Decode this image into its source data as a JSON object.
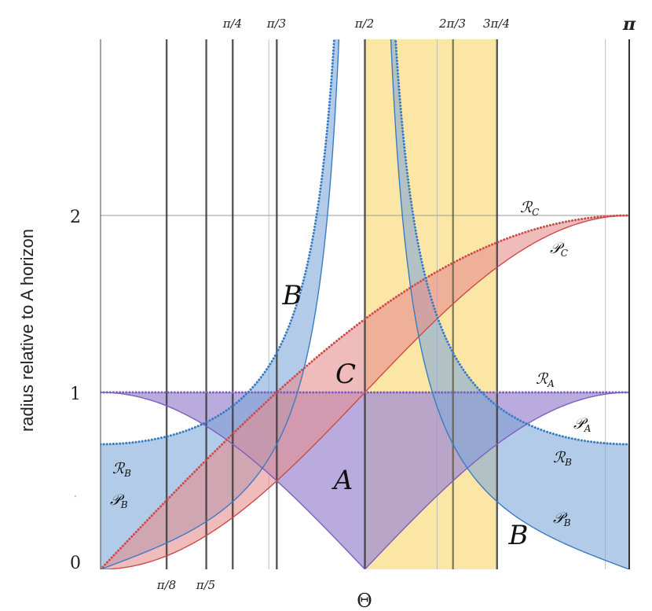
{
  "chart_data": {
    "type": "area",
    "title": "",
    "xlabel": "Θ",
    "ylabel": "radius  relative to A horizon",
    "xlim": [
      0,
      3.14159265
    ],
    "ylim": [
      0,
      3.0
    ],
    "y_ticks": [
      {
        "value": 0,
        "label": "0"
      },
      {
        "value": 1,
        "label": "1"
      },
      {
        "value": 2,
        "label": "2"
      }
    ],
    "top_ticks": [
      {
        "value": 0.785398,
        "label": "π/4"
      },
      {
        "value": 1.047198,
        "label": "π/3"
      },
      {
        "value": 1.570796,
        "label": "π/2"
      },
      {
        "value": 2.094395,
        "label": "2π/3"
      },
      {
        "value": 2.356194,
        "label": "3π/4"
      },
      {
        "value": 3.141593,
        "label": "π"
      }
    ],
    "bottom_ticks": [
      {
        "value": 0.392699,
        "label": "π/8"
      },
      {
        "value": 0.628319,
        "label": "π/5"
      }
    ],
    "thin_gridlines_x": [
      1.0,
      2.0,
      3.0
    ],
    "thin_gridlines_y": [
      2
    ],
    "thick_verticals_x": [
      0.392699,
      0.628319,
      0.785398,
      1.047198,
      1.570796,
      2.356194
    ],
    "highlight_band": {
      "x": [
        1.570796,
        2.356194
      ],
      "color": "#fce6a6"
    },
    "series": [
      {
        "name": "A",
        "curve_upper": "1",
        "curve_lower": "|cos Θ|",
        "color": "#7d5fc1",
        "fill": "#a38fd3"
      },
      {
        "name": "B",
        "curve_upper": "|sin(Θ/2) / cos(2Θ)|",
        "curve_lower": "|cos(Θ/2) / cos(2Θ)|... swapped",
        "color": "#3a7cc4",
        "fill": "#7fa9d8"
      },
      {
        "name": "C",
        "curve_upper": "2 sin(Θ/2)",
        "curve_lower": "1 - cos Θ",
        "color": "#d04a4a",
        "fill": "#e58e8e"
      }
    ],
    "region_labels": [
      "A",
      "B",
      "B",
      "C"
    ],
    "curve_labels": [
      {
        "script": "ℛ",
        "sub": "C"
      },
      {
        "script": "𝒫",
        "sub": "C"
      },
      {
        "script": "ℛ",
        "sub": "A"
      },
      {
        "script": "𝒫",
        "sub": "A"
      },
      {
        "script": "ℛ",
        "sub": "B"
      },
      {
        "script": "𝒫",
        "sub": "B"
      },
      {
        "script": "ℛ",
        "sub": "B"
      },
      {
        "script": "𝒫",
        "sub": "B"
      }
    ]
  }
}
